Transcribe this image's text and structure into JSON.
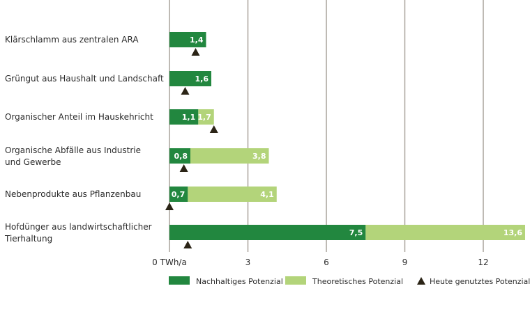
{
  "chart_data": {
    "type": "bar",
    "orientation": "horizontal",
    "stacked": false,
    "categories": [
      [
        "Klärschlamm aus zentralen ARA"
      ],
      [
        "Grüngut aus Haushalt und Landschaft"
      ],
      [
        "Organischer Anteil im Hauskehricht"
      ],
      [
        "Organische Abfälle aus Industrie",
        "und Gewerbe"
      ],
      [
        "Nebenprodukte aus Pflanzenbau"
      ],
      [
        "Hofdünger aus landwirtschaftlicher",
        "Tierhaltung"
      ]
    ],
    "series": [
      {
        "name": "Nachhaltiges Potenzial",
        "color": "#22873f",
        "values": [
          1.4,
          1.6,
          1.1,
          0.8,
          0.7,
          7.5
        ],
        "labels": [
          "1,4",
          "1,6",
          "1,1",
          "0,8",
          "0,7",
          "7,5"
        ]
      },
      {
        "name": "Theoretisches Potenzial",
        "color": "#b3d47a",
        "values": [
          null,
          null,
          1.7,
          3.8,
          4.1,
          13.6
        ],
        "labels": [
          null,
          null,
          "1,7",
          "3,8",
          "4,1",
          "13,6"
        ]
      },
      {
        "name": "Heute genutztes Potenzial",
        "color": "#2b2416",
        "marker": "triangle",
        "values": [
          1.0,
          0.6,
          1.7,
          0.55,
          0.0,
          0.7
        ]
      }
    ],
    "xticks": [
      0,
      3,
      6,
      9,
      12
    ],
    "xtick_labels": [
      "0 TWh/a",
      "3",
      "6",
      "9",
      "12"
    ],
    "xlim": [
      0,
      13.6
    ],
    "grid": true,
    "legend_position": "bottom"
  }
}
